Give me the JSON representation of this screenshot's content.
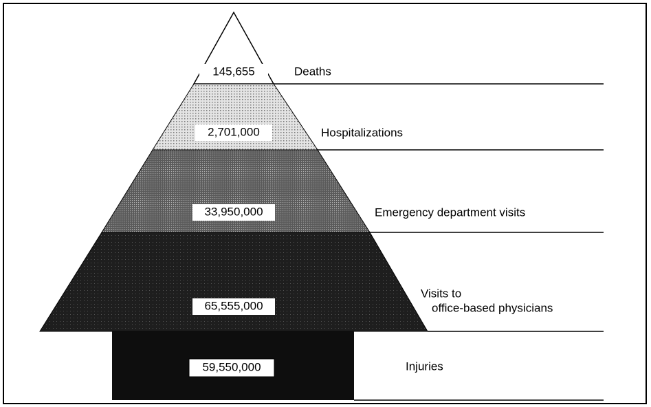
{
  "levels": [
    {
      "value": "145,655",
      "lines": [
        "Deaths"
      ]
    },
    {
      "value": "2,701,000",
      "lines": [
        "Hospitalizations"
      ]
    },
    {
      "value": "33,950,000",
      "lines": [
        "Emergency department visits"
      ]
    },
    {
      "value": "65,555,000",
      "lines": [
        "Visits to",
        "office-based physicians"
      ]
    },
    {
      "value": "59,550,000",
      "lines": [
        "Injuries"
      ]
    }
  ]
}
